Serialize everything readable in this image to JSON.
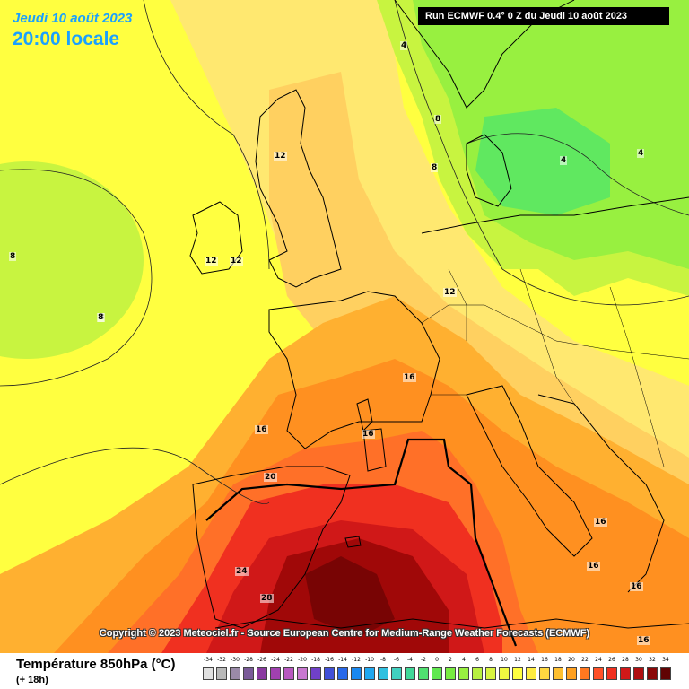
{
  "header": {
    "date_label": "Jeudi 10 août 2023",
    "time_label": "20:00 locale",
    "run_label": "Run ECMWF 0.4° 0 Z du Jeudi 10 août 2023"
  },
  "copyright": "Copyright © 2023 Meteociel.fr - Source European Centre for Medium-Range Weather Forecasts (ECMWF)",
  "footer": {
    "title": "Température 850hPa (°C)",
    "subtitle": "(+ 18h)"
  },
  "legend": {
    "values": [
      "-34",
      "-32",
      "-30",
      "-28",
      "-26",
      "-24",
      "-22",
      "-20",
      "-18",
      "-16",
      "-14",
      "-12",
      "-10",
      "-8",
      "-6",
      "-4",
      "-2",
      "0",
      "2",
      "4",
      "6",
      "8",
      "10",
      "12",
      "14",
      "16",
      "18",
      "20",
      "22",
      "24",
      "26",
      "28",
      "30",
      "32",
      "34"
    ],
    "colors": [
      "#e0e0e0",
      "#b8b8b8",
      "#9a8aa8",
      "#7a5a98",
      "#8a3aa0",
      "#a040b0",
      "#b858c0",
      "#c878d0",
      "#7040c8",
      "#4050d8",
      "#2868e8",
      "#1a88f0",
      "#20a8f0",
      "#30c0e0",
      "#40d0c0",
      "#40d898",
      "#50e070",
      "#60e850",
      "#78ec40",
      "#98f040",
      "#b8f040",
      "#d8f440",
      "#f0f840",
      "#ffff40",
      "#ffec40",
      "#ffd840",
      "#ffc030",
      "#ffa020",
      "#ff7820",
      "#ff5028",
      "#f03020",
      "#d01818",
      "#b00e10",
      "#8a0808",
      "#600404"
    ]
  },
  "map": {
    "isotherm_labels": [
      "4",
      "8",
      "8",
      "8",
      "4",
      "4",
      "12",
      "12",
      "12",
      "8",
      "8",
      "12",
      "16",
      "16",
      "16",
      "20",
      "16",
      "16",
      "16",
      "24",
      "28",
      "16"
    ],
    "colors": {
      "t4": "#60e860",
      "t6": "#98f040",
      "t8": "#c8f440",
      "t10": "#ffff40",
      "t12": "#ffe870",
      "t14": "#ffd060",
      "t16": "#ffb030",
      "t18": "#ff9020",
      "t20": "#ff7028",
      "t22": "#ff5030",
      "t24": "#f03020",
      "t26": "#d01818",
      "t28": "#a00808",
      "t30": "#780404"
    }
  }
}
